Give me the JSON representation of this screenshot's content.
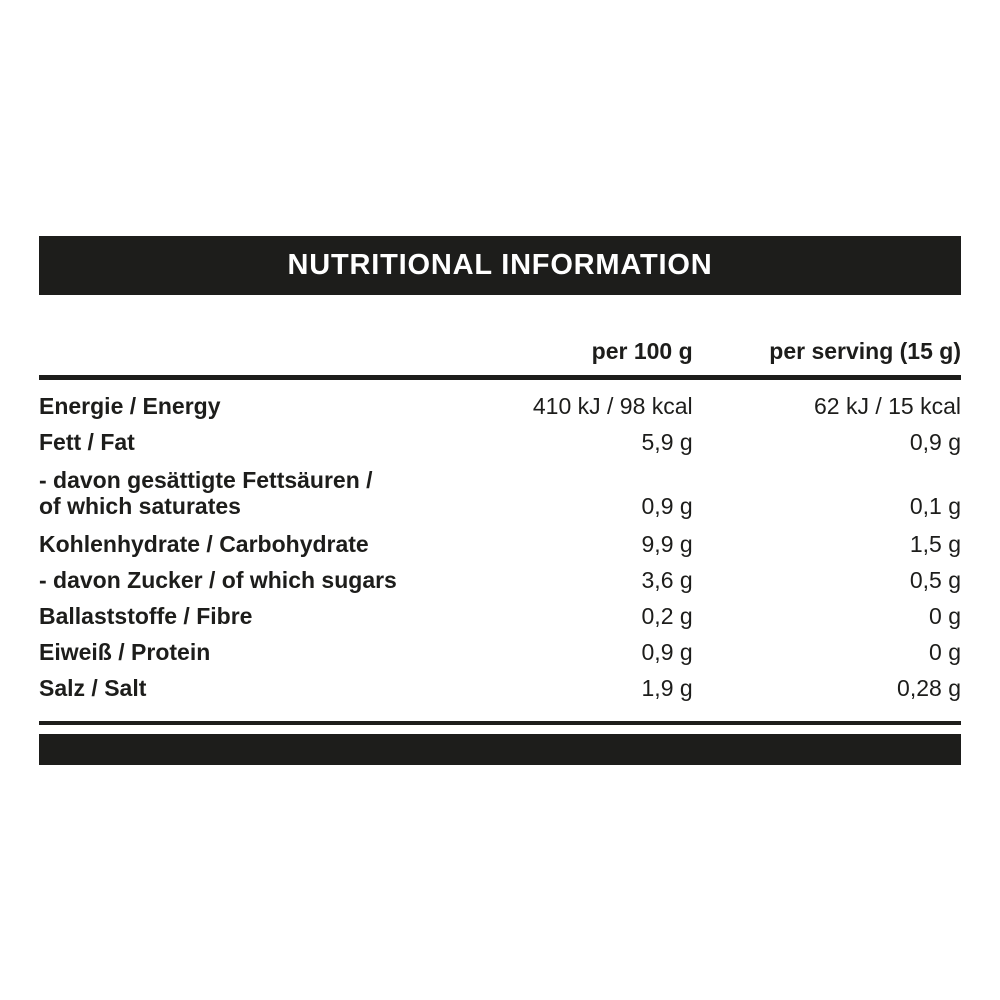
{
  "colors": {
    "ink": "#1d1d1b",
    "background": "#ffffff",
    "title_text": "#ffffff"
  },
  "title_bar": {
    "label": "NUTRITIONAL INFORMATION"
  },
  "table": {
    "column_headers": {
      "nutrient": "",
      "per_100g": "per 100 g",
      "per_serving": "per serving (15 g)"
    },
    "rows": [
      {
        "label": "Energie / Energy",
        "per_100g": "410 kJ / 98 kcal",
        "per_serving": "62 kJ / 15 kcal"
      },
      {
        "label": "Fett / Fat",
        "per_100g": "5,9 g",
        "per_serving": "0,9 g"
      },
      {
        "label": "- davon gesättigte Fettsäuren /\nof which saturates",
        "per_100g": "0,9 g",
        "per_serving": "0,1 g"
      },
      {
        "label": "Kohlenhydrate / Carbohydrate",
        "per_100g": "9,9 g",
        "per_serving": "1,5 g"
      },
      {
        "label": "- davon Zucker / of which sugars",
        "per_100g": "3,6 g",
        "per_serving": "0,5 g"
      },
      {
        "label": "Ballaststoffe / Fibre",
        "per_100g": "0,2 g",
        "per_serving": "0 g"
      },
      {
        "label": "Eiweiß / Protein",
        "per_100g": "0,9 g",
        "per_serving": "0 g"
      },
      {
        "label": "Salz / Salt",
        "per_100g": "1,9 g",
        "per_serving": "0,28 g"
      }
    ]
  }
}
